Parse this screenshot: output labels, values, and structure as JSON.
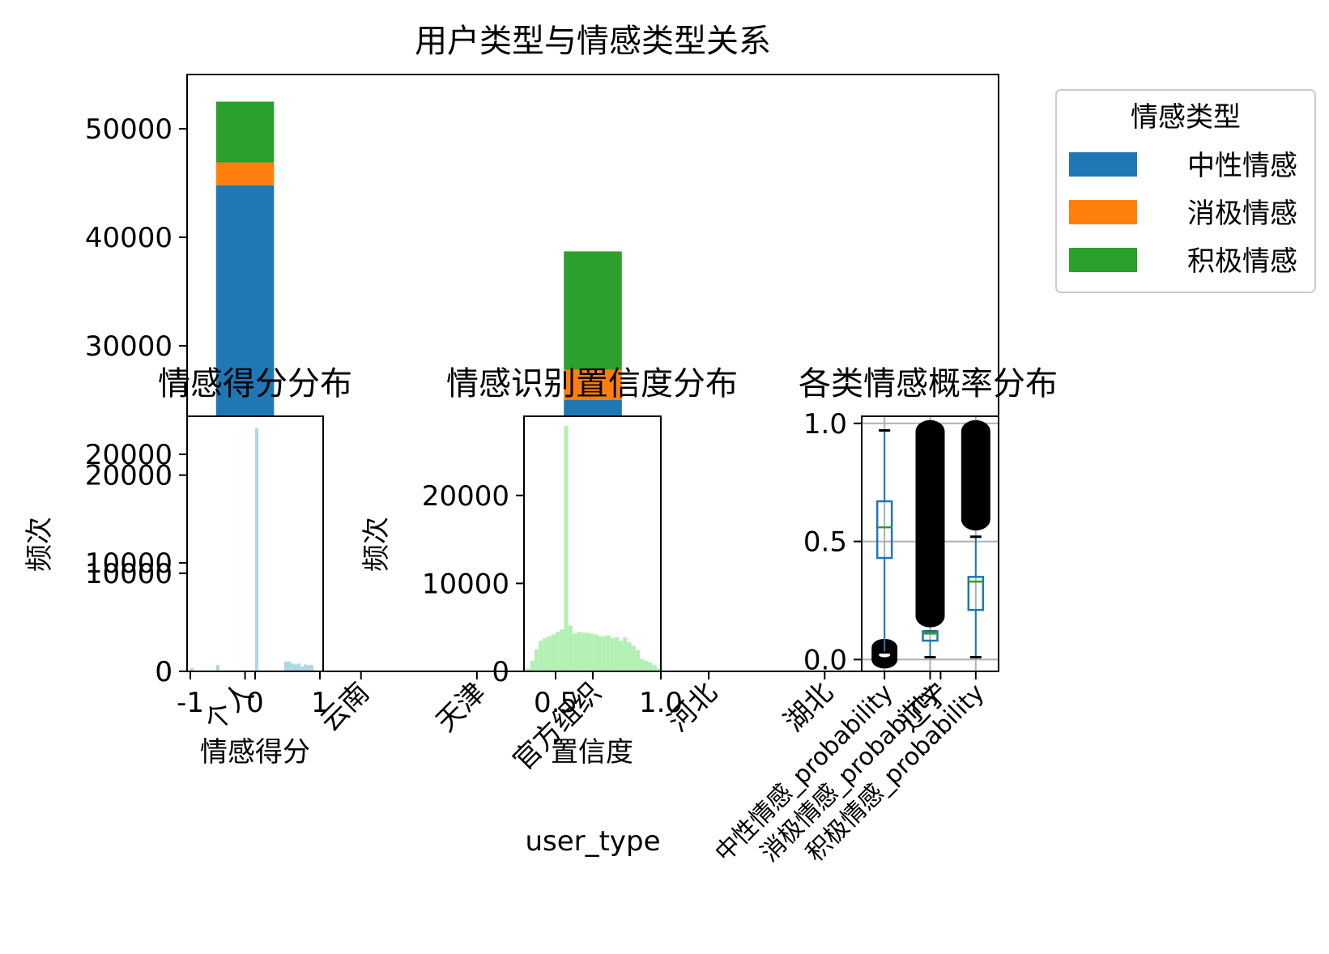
{
  "chart_data": [
    {
      "type": "bar",
      "stacked": true,
      "title": "用户类型与情感类型关系",
      "xlabel": "user_type",
      "ylabel": "",
      "categories": [
        "个人",
        "云南",
        "天津",
        "官方组织",
        "河北",
        "湖北",
        "辽宁"
      ],
      "ylim": [
        0,
        55000
      ],
      "yticks": [
        0,
        10000,
        20000,
        30000,
        40000,
        50000
      ],
      "grid": false,
      "legend_title": "情感类型",
      "legend_position": "upper right outside",
      "series": [
        {
          "name": "中性情感",
          "color": "#1f77b4",
          "values": [
            44800,
            0,
            0,
            25000,
            0,
            0,
            0
          ]
        },
        {
          "name": "消极情感",
          "color": "#ff7f0e",
          "values": [
            2100,
            0,
            0,
            2800,
            0,
            0,
            0
          ]
        },
        {
          "name": "积极情感",
          "color": "#2ca02c",
          "values": [
            5600,
            0,
            0,
            10900,
            0,
            0,
            0
          ]
        }
      ]
    },
    {
      "type": "histogram",
      "title": "情感得分分布",
      "xlabel": "情感得分",
      "ylabel": "频次",
      "color": "#add8e6",
      "xlim": [
        -1.05,
        1.05
      ],
      "ylim": [
        0,
        26000
      ],
      "xticks": [
        -1,
        0,
        1
      ],
      "yticks": [
        0,
        10000,
        20000
      ],
      "bins": [
        {
          "x0": -1.0,
          "x1": -0.95,
          "count": 350
        },
        {
          "x0": -0.6,
          "x1": -0.55,
          "count": 650
        },
        {
          "x0": 0.0,
          "x1": 0.05,
          "count": 24800
        },
        {
          "x0": 0.45,
          "x1": 0.5,
          "count": 1000
        },
        {
          "x0": 0.5,
          "x1": 0.55,
          "count": 1000
        },
        {
          "x0": 0.55,
          "x1": 0.6,
          "count": 800
        },
        {
          "x0": 0.6,
          "x1": 0.65,
          "count": 700
        },
        {
          "x0": 0.65,
          "x1": 0.7,
          "count": 800
        },
        {
          "x0": 0.7,
          "x1": 0.75,
          "count": 500
        },
        {
          "x0": 0.75,
          "x1": 0.8,
          "count": 700
        },
        {
          "x0": 0.8,
          "x1": 0.85,
          "count": 600
        },
        {
          "x0": 0.85,
          "x1": 0.9,
          "count": 650
        }
      ]
    },
    {
      "type": "histogram",
      "title": "情感识别置信度分布",
      "xlabel": "置信度",
      "ylabel": "频次",
      "color": "#b3f0b3",
      "xlim": [
        0.35,
        1.0
      ],
      "ylim": [
        0,
        29000
      ],
      "xticks": [
        0.5,
        1.0
      ],
      "xtick_labels": [
        "0.5",
        "1.0"
      ],
      "yticks": [
        0,
        10000,
        20000
      ],
      "bins": [
        {
          "x0": 0.36,
          "x1": 0.38,
          "count": 300
        },
        {
          "x0": 0.38,
          "x1": 0.4,
          "count": 1200
        },
        {
          "x0": 0.4,
          "x1": 0.42,
          "count": 2500
        },
        {
          "x0": 0.42,
          "x1": 0.44,
          "count": 3500
        },
        {
          "x0": 0.44,
          "x1": 0.46,
          "count": 3800
        },
        {
          "x0": 0.46,
          "x1": 0.48,
          "count": 4000
        },
        {
          "x0": 0.48,
          "x1": 0.5,
          "count": 4200
        },
        {
          "x0": 0.5,
          "x1": 0.52,
          "count": 4500
        },
        {
          "x0": 0.52,
          "x1": 0.54,
          "count": 4800
        },
        {
          "x0": 0.54,
          "x1": 0.56,
          "count": 27900
        },
        {
          "x0": 0.56,
          "x1": 0.58,
          "count": 5200
        },
        {
          "x0": 0.58,
          "x1": 0.6,
          "count": 4300
        },
        {
          "x0": 0.6,
          "x1": 0.62,
          "count": 4500
        },
        {
          "x0": 0.62,
          "x1": 0.64,
          "count": 4400
        },
        {
          "x0": 0.64,
          "x1": 0.66,
          "count": 4400
        },
        {
          "x0": 0.66,
          "x1": 0.68,
          "count": 4300
        },
        {
          "x0": 0.68,
          "x1": 0.7,
          "count": 4200
        },
        {
          "x0": 0.7,
          "x1": 0.72,
          "count": 4000
        },
        {
          "x0": 0.72,
          "x1": 0.74,
          "count": 4000
        },
        {
          "x0": 0.74,
          "x1": 0.76,
          "count": 4100
        },
        {
          "x0": 0.76,
          "x1": 0.78,
          "count": 3800
        },
        {
          "x0": 0.78,
          "x1": 0.8,
          "count": 3900
        },
        {
          "x0": 0.8,
          "x1": 0.82,
          "count": 3500
        },
        {
          "x0": 0.82,
          "x1": 0.84,
          "count": 3900
        },
        {
          "x0": 0.84,
          "x1": 0.86,
          "count": 3300
        },
        {
          "x0": 0.86,
          "x1": 0.88,
          "count": 2900
        },
        {
          "x0": 0.88,
          "x1": 0.9,
          "count": 2400
        },
        {
          "x0": 0.9,
          "x1": 0.92,
          "count": 1400
        },
        {
          "x0": 0.92,
          "x1": 0.94,
          "count": 1200
        },
        {
          "x0": 0.94,
          "x1": 0.96,
          "count": 1000
        },
        {
          "x0": 0.96,
          "x1": 0.98,
          "count": 700
        },
        {
          "x0": 0.98,
          "x1": 1.0,
          "count": 300
        }
      ]
    },
    {
      "type": "box",
      "title": "各类情感概率分布",
      "xlabel": "",
      "ylabel": "",
      "grid": true,
      "ylim": [
        -0.05,
        1.03
      ],
      "yticks": [
        0.0,
        0.5,
        1.0
      ],
      "ytick_labels": [
        "0.0",
        "0.5",
        "1.0"
      ],
      "box_color": "#1f77b4",
      "median_color": "#2ca02c",
      "boxes": [
        {
          "label": "中性情感_probability",
          "whisker_low": 0.03,
          "q1": 0.43,
          "median": 0.56,
          "q3": 0.67,
          "whisker_high": 0.97,
          "outliers": [
            0.0,
            0.01,
            0.02,
            0.03,
            0.04,
            0.05
          ]
        },
        {
          "label": "消极情感_probability",
          "whisker_low": 0.01,
          "q1": 0.08,
          "median": 0.11,
          "q3": 0.12,
          "whisker_high": 0.12,
          "outlier_range": [
            0.15,
            1.0
          ]
        },
        {
          "label": "积极情感_probability",
          "whisker_low": 0.01,
          "q1": 0.21,
          "median": 0.33,
          "q3": 0.35,
          "whisker_high": 0.52,
          "outlier_range": [
            0.56,
            1.0
          ]
        }
      ]
    }
  ]
}
